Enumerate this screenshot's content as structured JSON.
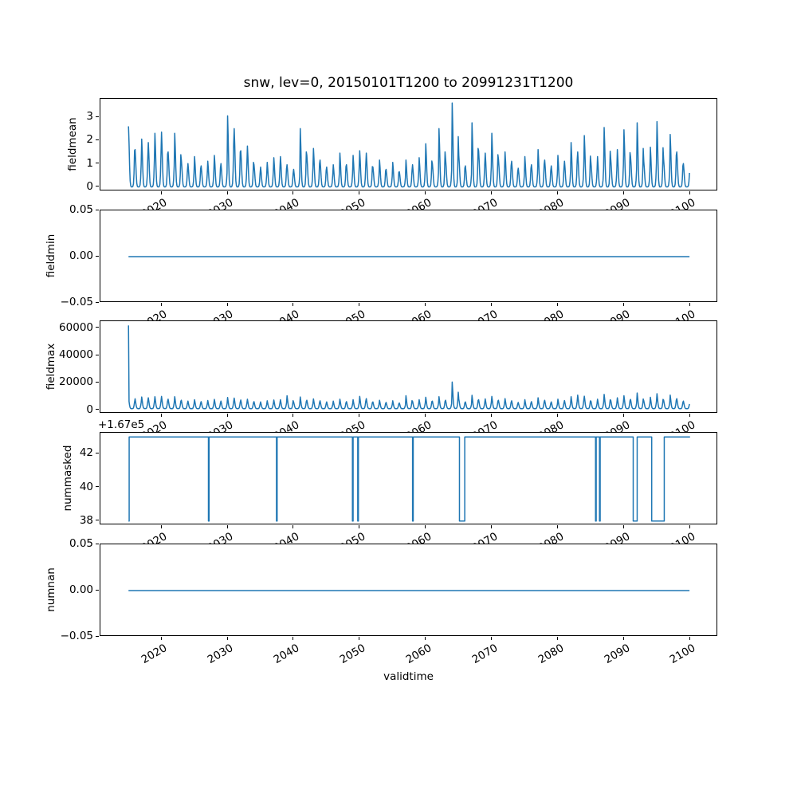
{
  "figure": {
    "background": "#ffffff",
    "line_color": "#1f77b4",
    "spine_color": "#000000"
  },
  "chart_data": {
    "type": "line",
    "title": "snw, lev=0, 20150101T1200 to 20991231T1200",
    "grid": false,
    "legend": "none",
    "x_axis": {
      "label": "validtime",
      "xlim": [
        2010.75,
        2104.25
      ],
      "data_start_year": 2015.0,
      "data_end_year": 2100.0,
      "ticks": [
        2020,
        2030,
        2040,
        2050,
        2060,
        2070,
        2080,
        2090,
        2100
      ],
      "tick_labels": [
        "2020",
        "2030",
        "2040",
        "2050",
        "2060",
        "2070",
        "2080",
        "2090",
        "2100"
      ],
      "tick_rotation_deg": 30
    },
    "subplots": [
      {
        "ylabel": "fieldmean",
        "ylim": [
          -0.18,
          3.79
        ],
        "yticks": [
          0,
          1,
          2,
          3
        ],
        "ytick_labels": [
          "0",
          "1",
          "2",
          "3"
        ],
        "line_color": "#1f77b4",
        "series": {
          "kind": "annual_peaks",
          "years_start": 2015,
          "baseline": 0.01,
          "monthly_profile": [
            1.0,
            0.72,
            0.35,
            0.1,
            0.02,
            0.0,
            0.0,
            0.0,
            0.01,
            0.05,
            0.22,
            0.6
          ],
          "annual_peak_values": [
            2.6,
            1.6,
            2.05,
            1.9,
            2.3,
            2.35,
            1.5,
            2.3,
            1.15,
            1.0,
            1.3,
            0.9,
            1.1,
            1.35,
            1.0,
            3.05,
            2.5,
            1.55,
            1.75,
            0.95,
            0.85,
            1.05,
            1.25,
            1.3,
            0.95,
            0.75,
            2.5,
            1.35,
            1.65,
            1.15,
            0.85,
            0.95,
            1.45,
            0.95,
            1.35,
            1.55,
            1.45,
            0.85,
            1.15,
            0.75,
            1.05,
            0.65,
            1.15,
            0.95,
            1.25,
            1.85,
            1.0,
            2.5,
            1.2,
            3.6,
            1.35,
            0.9,
            2.75,
            1.55,
            1.45,
            2.3,
            1.2,
            1.5,
            1.1,
            0.8,
            1.3,
            0.95,
            1.6,
            1.15,
            0.9,
            1.35,
            1.1,
            1.9,
            1.5,
            2.2,
            1.05,
            1.3,
            2.55,
            1.2,
            1.6,
            2.45,
            1.3,
            2.75,
            1.1,
            1.7,
            2.8,
            1.2,
            2.25,
            1.5,
            1.0
          ]
        }
      },
      {
        "ylabel": "fieldmin",
        "ylim": [
          -0.05,
          0.05
        ],
        "yticks": [
          -0.05,
          0.0,
          0.05
        ],
        "ytick_labels": [
          "−0.05",
          "0.00",
          "0.05"
        ],
        "line_color": "#1f77b4",
        "series": {
          "kind": "constant",
          "value": 0.0
        }
      },
      {
        "ylabel": "fieldmax",
        "ylim": [
          -2600,
          65100
        ],
        "yticks": [
          0,
          20000,
          40000,
          60000
        ],
        "ytick_labels": [
          "0",
          "20000",
          "40000",
          "60000"
        ],
        "line_color": "#1f77b4",
        "series": {
          "kind": "annual_peaks",
          "years_start": 2015,
          "baseline": 1000,
          "first_value": 62000,
          "monthly_profile": [
            1.0,
            0.66,
            0.3,
            0.1,
            0.03,
            0.01,
            0.01,
            0.01,
            0.02,
            0.08,
            0.28,
            0.62
          ],
          "annual_peak_values": [
            8000,
            7300,
            8600,
            8000,
            8800,
            9000,
            7000,
            8800,
            6200,
            5600,
            6600,
            5200,
            6000,
            6800,
            5600,
            8200,
            7800,
            6400,
            7000,
            5200,
            5000,
            5800,
            6400,
            6600,
            9500,
            4800,
            8600,
            6200,
            7200,
            5800,
            5000,
            5600,
            7000,
            5200,
            6600,
            9000,
            7400,
            5000,
            6200,
            4600,
            5800,
            4200,
            9500,
            5400,
            6600,
            8400,
            5600,
            8800,
            6200,
            19500,
            7000,
            5000,
            9800,
            6600,
            7200,
            9000,
            6200,
            7400,
            5800,
            4600,
            6600,
            5200,
            8000,
            6200,
            5000,
            7000,
            6000,
            8800,
            10000,
            9200,
            5600,
            7000,
            10500,
            6200,
            8000,
            9500,
            6800,
            11500,
            5800,
            8400,
            11000,
            6400,
            10000,
            7400,
            5600
          ]
        }
      },
      {
        "ylabel": "nummasked",
        "ylim": [
          37.75,
          43.25
        ],
        "yticks": [
          38,
          40,
          42
        ],
        "ytick_labels": [
          "38",
          "40",
          "42"
        ],
        "offset_text": "+1.67e5",
        "line_color": "#1f77b4",
        "series": {
          "kind": "step",
          "high": 43,
          "low": 38,
          "high_true_value": 167043,
          "low_true_value": 167038,
          "low_intervals": [
            [
              2015.0,
              2015.1
            ],
            [
              2027.1,
              2027.2
            ],
            [
              2037.4,
              2037.5
            ],
            [
              2048.9,
              2049.0
            ],
            [
              2049.7,
              2049.8
            ],
            [
              2058.0,
              2058.1
            ],
            [
              2065.1,
              2065.9
            ],
            [
              2085.7,
              2085.8
            ],
            [
              2086.3,
              2086.4
            ],
            [
              2091.4,
              2092.0
            ],
            [
              2094.2,
              2096.1
            ]
          ]
        }
      },
      {
        "ylabel": "numnan",
        "ylim": [
          -0.05,
          0.05
        ],
        "yticks": [
          -0.05,
          0.0,
          0.05
        ],
        "ytick_labels": [
          "−0.05",
          "0.00",
          "0.05"
        ],
        "line_color": "#1f77b4",
        "series": {
          "kind": "constant",
          "value": 0.0
        }
      }
    ]
  }
}
